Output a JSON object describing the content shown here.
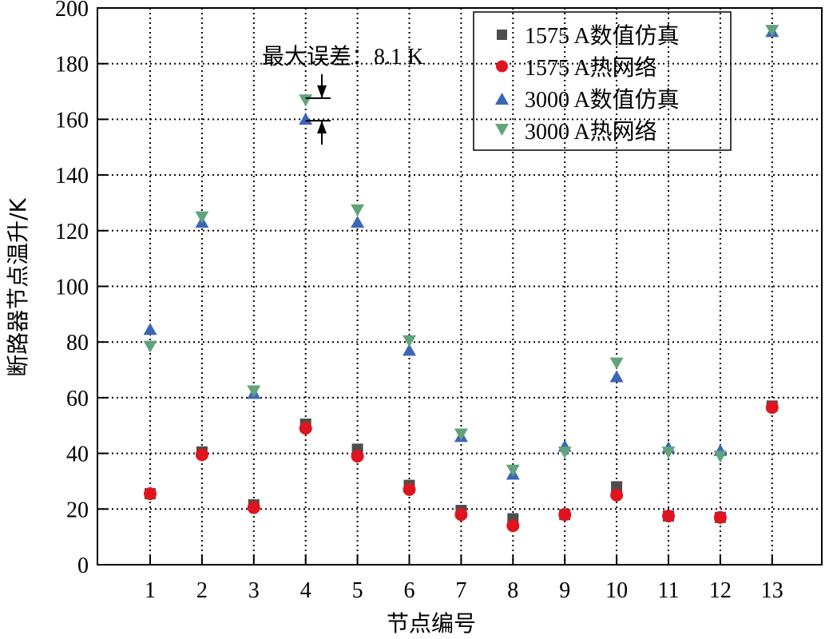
{
  "chart_data": {
    "type": "scatter",
    "title": "",
    "xlabel": "节点编号",
    "ylabel": "断路器节点温升/K",
    "xlim": [
      0,
      13.6
    ],
    "ylim": [
      0,
      200
    ],
    "x_ticks": [
      1,
      2,
      3,
      4,
      5,
      6,
      7,
      8,
      9,
      10,
      11,
      12,
      13
    ],
    "y_ticks": [
      0,
      20,
      40,
      60,
      80,
      100,
      120,
      140,
      160,
      180,
      200
    ],
    "grid": true,
    "legend_position": "upper right",
    "x": [
      1,
      2,
      3,
      4,
      5,
      6,
      7,
      8,
      9,
      10,
      11,
      12,
      13
    ],
    "series": [
      {
        "name": "1575 A数值仿真",
        "marker": "square",
        "color": "#4d4d4d",
        "values": [
          25.5,
          40.5,
          21.5,
          50.5,
          41.5,
          28.5,
          19.5,
          16.5,
          18,
          28,
          17.5,
          17,
          57
        ]
      },
      {
        "name": "1575 A热网络",
        "marker": "circle",
        "color": "#e0141e",
        "values": [
          25.5,
          39.5,
          20.5,
          49,
          39,
          27,
          18,
          14,
          18,
          25,
          17.5,
          17,
          56.5
        ]
      },
      {
        "name": "3000 A数值仿真",
        "marker": "triangle-up",
        "color": "#3d66b8",
        "values": [
          84,
          122.5,
          61,
          159.5,
          122.5,
          76.5,
          45.5,
          32,
          42,
          67,
          41.5,
          40.5,
          191
        ]
      },
      {
        "name": "3000 A热网络",
        "marker": "triangle-down",
        "color": "#62a47a",
        "values": [
          79,
          125.5,
          63,
          167.5,
          128,
          81,
          47.5,
          34.5,
          41,
          73,
          41,
          39.5,
          192.5
        ]
      }
    ],
    "annotations": [
      {
        "text": "最大误差：8.1 K",
        "x": 4,
        "y_range": [
          159.5,
          167.6
        ]
      }
    ]
  }
}
